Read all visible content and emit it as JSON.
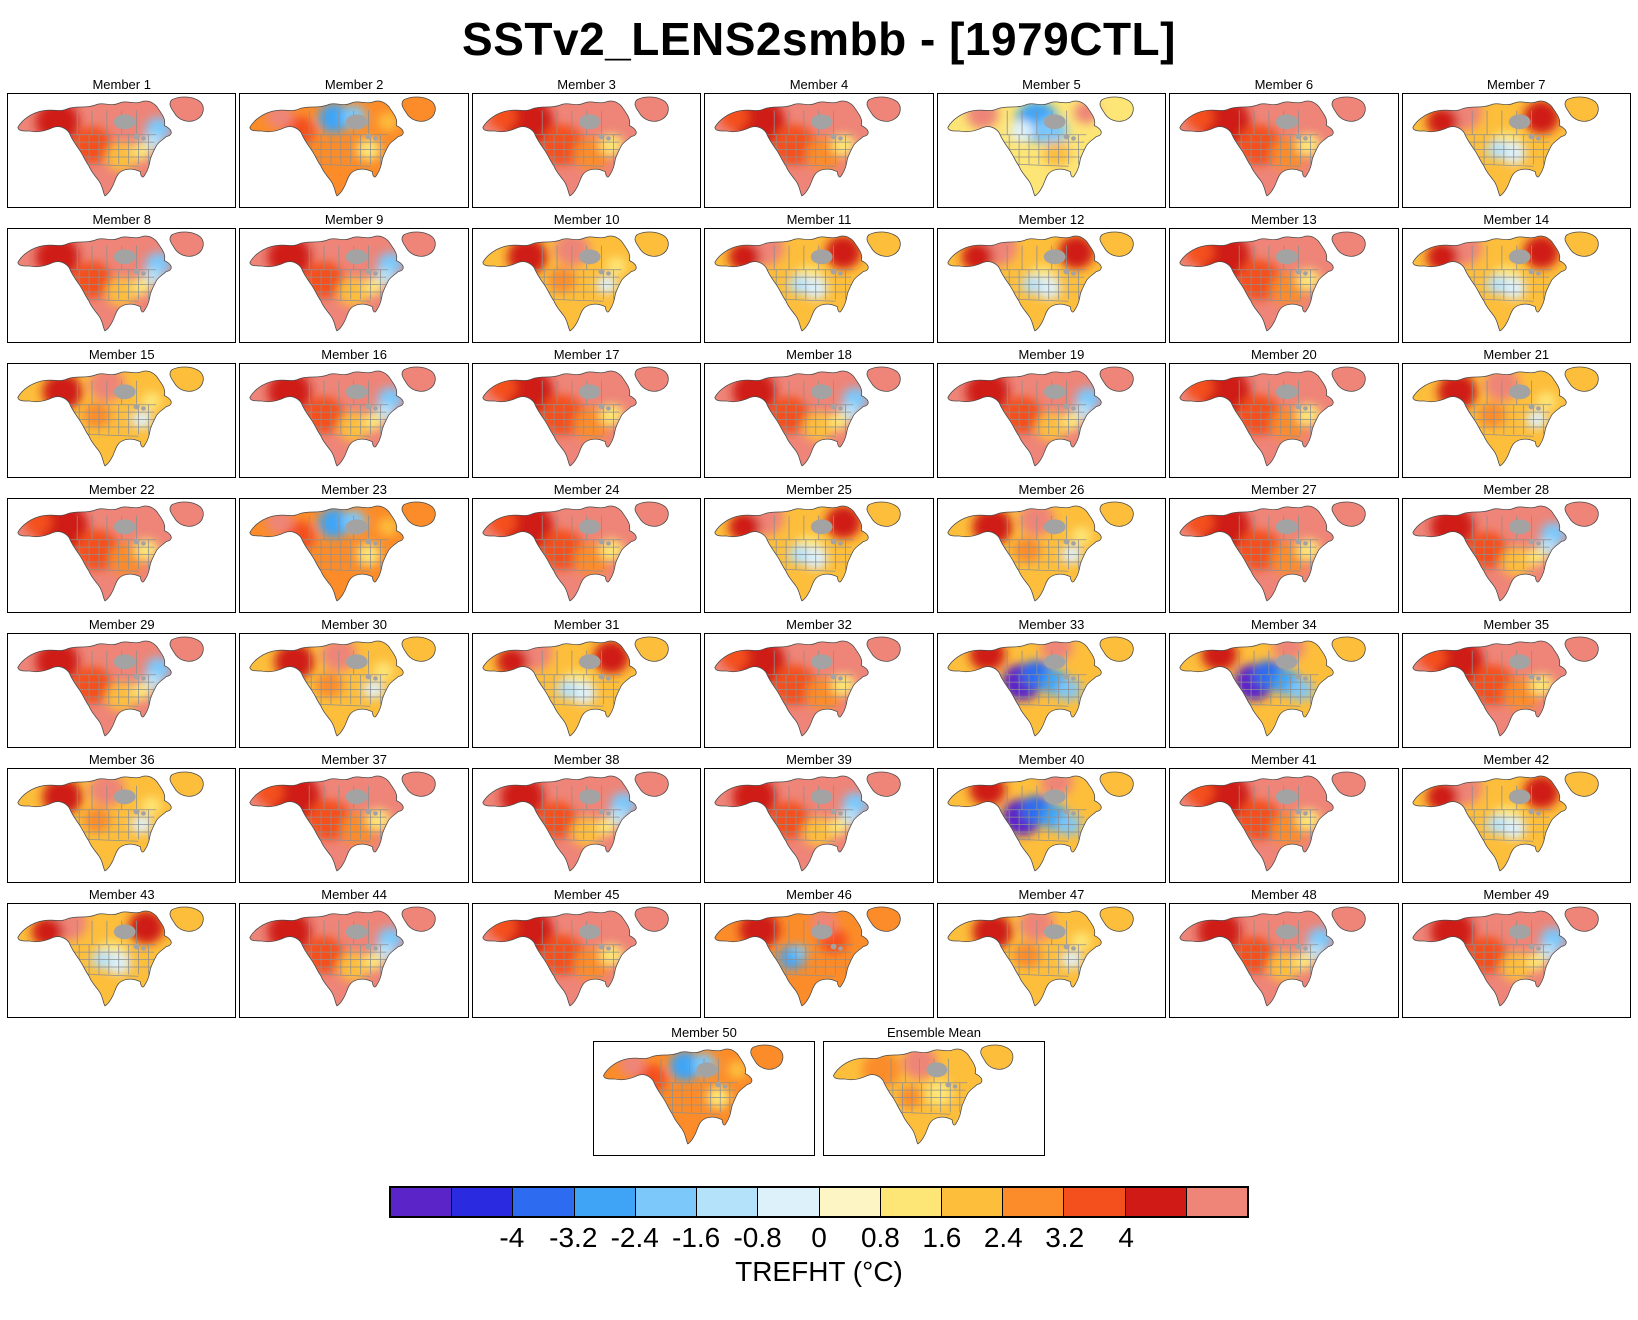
{
  "header": {
    "title": "SSTv2_LENS2smbb - [1979CTL]"
  },
  "panels": [
    {
      "label": "Member 1",
      "pattern": "warm-cool-east",
      "placement": "grid"
    },
    {
      "label": "Member 2",
      "pattern": "mixed-cool-north",
      "placement": "grid"
    },
    {
      "label": "Member 3",
      "pattern": "strong-warm",
      "placement": "grid"
    },
    {
      "label": "Member 4",
      "pattern": "strong-warm",
      "placement": "grid"
    },
    {
      "label": "Member 5",
      "pattern": "cool-central",
      "placement": "grid"
    },
    {
      "label": "Member 6",
      "pattern": "strong-warm",
      "placement": "grid"
    },
    {
      "label": "Member 7",
      "pattern": "mixed-cool-center",
      "placement": "grid"
    },
    {
      "label": "Member 8",
      "pattern": "warm-cool-east",
      "placement": "grid"
    },
    {
      "label": "Member 9",
      "pattern": "warm-cool-east",
      "placement": "grid"
    },
    {
      "label": "Member 10",
      "pattern": "mixed",
      "placement": "grid"
    },
    {
      "label": "Member 11",
      "pattern": "mixed-cool-center",
      "placement": "grid"
    },
    {
      "label": "Member 12",
      "pattern": "mixed-cool-center",
      "placement": "grid"
    },
    {
      "label": "Member 13",
      "pattern": "strong-warm",
      "placement": "grid"
    },
    {
      "label": "Member 14",
      "pattern": "mixed-cool-center",
      "placement": "grid"
    },
    {
      "label": "Member 15",
      "pattern": "mixed",
      "placement": "grid"
    },
    {
      "label": "Member 16",
      "pattern": "warm-cool-east",
      "placement": "grid"
    },
    {
      "label": "Member 17",
      "pattern": "strong-warm",
      "placement": "grid"
    },
    {
      "label": "Member 18",
      "pattern": "warm-cool-east",
      "placement": "grid"
    },
    {
      "label": "Member 19",
      "pattern": "warm-cool-east",
      "placement": "grid"
    },
    {
      "label": "Member 20",
      "pattern": "strong-warm",
      "placement": "grid"
    },
    {
      "label": "Member 21",
      "pattern": "mixed",
      "placement": "grid"
    },
    {
      "label": "Member 22",
      "pattern": "strong-warm",
      "placement": "grid"
    },
    {
      "label": "Member 23",
      "pattern": "mixed-cool-north",
      "placement": "grid"
    },
    {
      "label": "Member 24",
      "pattern": "strong-warm",
      "placement": "grid"
    },
    {
      "label": "Member 25",
      "pattern": "mixed-cool-center",
      "placement": "grid"
    },
    {
      "label": "Member 26",
      "pattern": "mixed",
      "placement": "grid"
    },
    {
      "label": "Member 27",
      "pattern": "strong-warm",
      "placement": "grid"
    },
    {
      "label": "Member 28",
      "pattern": "warm-cool-east",
      "placement": "grid"
    },
    {
      "label": "Member 29",
      "pattern": "warm-cool-east",
      "placement": "grid"
    },
    {
      "label": "Member 30",
      "pattern": "mixed",
      "placement": "grid"
    },
    {
      "label": "Member 31",
      "pattern": "mixed-cool-center",
      "placement": "grid"
    },
    {
      "label": "Member 32",
      "pattern": "strong-warm",
      "placement": "grid"
    },
    {
      "label": "Member 33",
      "pattern": "strong-cool-west",
      "placement": "grid"
    },
    {
      "label": "Member 34",
      "pattern": "strong-cool-west",
      "placement": "grid"
    },
    {
      "label": "Member 35",
      "pattern": "strong-warm",
      "placement": "grid"
    },
    {
      "label": "Member 36",
      "pattern": "mixed",
      "placement": "grid"
    },
    {
      "label": "Member 37",
      "pattern": "strong-warm",
      "placement": "grid"
    },
    {
      "label": "Member 38",
      "pattern": "warm-cool-east",
      "placement": "grid"
    },
    {
      "label": "Member 39",
      "pattern": "warm-cool-east",
      "placement": "grid"
    },
    {
      "label": "Member 40",
      "pattern": "strong-cool-west",
      "placement": "grid"
    },
    {
      "label": "Member 41",
      "pattern": "strong-warm",
      "placement": "grid"
    },
    {
      "label": "Member 42",
      "pattern": "mixed-cool-center",
      "placement": "grid"
    },
    {
      "label": "Member 43",
      "pattern": "mixed-cool-center",
      "placement": "grid"
    },
    {
      "label": "Member 44",
      "pattern": "warm-cool-east",
      "placement": "grid"
    },
    {
      "label": "Member 45",
      "pattern": "strong-warm",
      "placement": "grid"
    },
    {
      "label": "Member 46",
      "pattern": "cool-patch-west",
      "placement": "grid"
    },
    {
      "label": "Member 47",
      "pattern": "mixed",
      "placement": "grid"
    },
    {
      "label": "Member 48",
      "pattern": "warm-cool-east",
      "placement": "grid"
    },
    {
      "label": "Member 49",
      "pattern": "warm-cool-east",
      "placement": "grid"
    },
    {
      "label": "Member 50",
      "pattern": "mixed-cool-north",
      "placement": "bottom"
    },
    {
      "label": "Ensemble Mean",
      "pattern": "mean",
      "placement": "bottom"
    }
  ],
  "colorbar": {
    "label": "TREFHT (°C)",
    "ticks": [
      "-4",
      "-3.2",
      "-2.4",
      "-1.6",
      "-0.8",
      "0",
      "0.8",
      "1.6",
      "2.4",
      "3.2",
      "4"
    ],
    "colors": [
      "#5b24c9",
      "#2a2ae0",
      "#2d6cf0",
      "#3fa4f5",
      "#7cc8fa",
      "#b5e2fb",
      "#ddf1fb",
      "#fdf6c4",
      "#fde576",
      "#fdbe3c",
      "#fb8c29",
      "#f4501e",
      "#cf1a15",
      "#ee8578"
    ]
  },
  "chart_data": {
    "type": "heatmap",
    "title": "SSTv2_LENS2smbb - [1979CTL]",
    "variable": "TREFHT",
    "units": "°C",
    "region": "North America",
    "colorbar_ticks": [
      -4,
      -3.2,
      -2.4,
      -1.6,
      -0.8,
      0,
      0.8,
      1.6,
      2.4,
      3.2,
      4
    ],
    "panel_count": 51,
    "panel_labels_rule": "Member 1 through Member 50, plus Ensemble Mean",
    "layout": "7 columns x 7 rows of maps for Members 1-49; bottom centered row holds Member 50 and Ensemble Mean; shared discrete colorbar below",
    "legend_position": "bottom",
    "description": "Near-surface air temperature (TREFHT) anomaly maps over North America for 50 ensemble members and the ensemble mean. Most members show strong warm anomalies (red/salmon, > 3-4 °C) over Alaska and Canada with warm-to-mixed anomalies (yellow/orange) over the central and eastern United States; several members show small cool (blue) patches over eastern Canada or the U.S. Midwest; Members 33, 34 and 40 show strong cold anomalies (blue/purple, < -3 °C) over western-central North America; Member 5 shows a cool center over central Canada; the Ensemble Mean is moderately warm (orange) everywhere."
  }
}
